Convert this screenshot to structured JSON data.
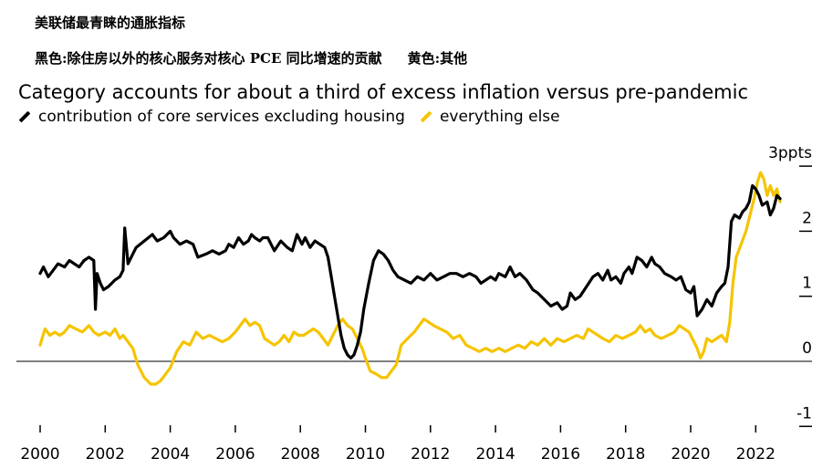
{
  "header": {
    "cn_title": "美联储最青睐的通胀指标",
    "cn_subtitle_black": "黑色:除住房以外的核心服务对核心 PCE 同比增速的贡献",
    "cn_subtitle_yellow": "黄色:其他"
  },
  "colors": {
    "black_series": "#000000",
    "yellow_series": "#f5c400",
    "zero_line": "#555555"
  },
  "chart_data": {
    "type": "line",
    "title": "Category accounts for about a third of excess inflation versus pre-pandemic",
    "ylabel": "ppts",
    "xlim": [
      2000,
      2023.4
    ],
    "ylim": [
      -1,
      3
    ],
    "y_ticks": [
      -1,
      0,
      1,
      2,
      3
    ],
    "y_tick_labels": [
      "-1",
      "0",
      "1",
      "2",
      "3ppts"
    ],
    "x_ticks": [
      2000,
      2002,
      2004,
      2006,
      2008,
      2010,
      2012,
      2014,
      2016,
      2018,
      2020,
      2022
    ],
    "x_tick_labels": [
      "2000",
      "2002",
      "2004",
      "2006",
      "2008",
      "2010",
      "2012",
      "2014",
      "2016",
      "2018",
      "2020",
      "2022"
    ],
    "series": [
      {
        "name": "contribution of core services excluding housing",
        "color": "#000000",
        "points": [
          [
            2000.0,
            1.35
          ],
          [
            2000.1,
            1.45
          ],
          [
            2000.25,
            1.3
          ],
          [
            2000.4,
            1.4
          ],
          [
            2000.55,
            1.5
          ],
          [
            2000.75,
            1.45
          ],
          [
            2000.9,
            1.55
          ],
          [
            2001.05,
            1.5
          ],
          [
            2001.2,
            1.45
          ],
          [
            2001.35,
            1.55
          ],
          [
            2001.5,
            1.6
          ],
          [
            2001.65,
            1.55
          ],
          [
            2001.7,
            0.8
          ],
          [
            2001.75,
            1.35
          ],
          [
            2001.85,
            1.2
          ],
          [
            2001.95,
            1.1
          ],
          [
            2002.1,
            1.15
          ],
          [
            2002.3,
            1.25
          ],
          [
            2002.45,
            1.3
          ],
          [
            2002.55,
            1.4
          ],
          [
            2002.6,
            2.05
          ],
          [
            2002.7,
            1.5
          ],
          [
            2002.8,
            1.6
          ],
          [
            2002.95,
            1.75
          ],
          [
            2003.2,
            1.85
          ],
          [
            2003.45,
            1.95
          ],
          [
            2003.6,
            1.85
          ],
          [
            2003.8,
            1.9
          ],
          [
            2004.0,
            2.0
          ],
          [
            2004.1,
            1.9
          ],
          [
            2004.3,
            1.8
          ],
          [
            2004.5,
            1.85
          ],
          [
            2004.7,
            1.8
          ],
          [
            2004.85,
            1.6
          ],
          [
            2005.1,
            1.65
          ],
          [
            2005.3,
            1.7
          ],
          [
            2005.5,
            1.65
          ],
          [
            2005.7,
            1.7
          ],
          [
            2005.8,
            1.8
          ],
          [
            2005.95,
            1.75
          ],
          [
            2006.1,
            1.9
          ],
          [
            2006.25,
            1.8
          ],
          [
            2006.4,
            1.85
          ],
          [
            2006.5,
            1.95
          ],
          [
            2006.6,
            1.9
          ],
          [
            2006.75,
            1.85
          ],
          [
            2006.85,
            1.9
          ],
          [
            2007.0,
            1.9
          ],
          [
            2007.2,
            1.7
          ],
          [
            2007.4,
            1.85
          ],
          [
            2007.6,
            1.75
          ],
          [
            2007.75,
            1.7
          ],
          [
            2007.9,
            1.95
          ],
          [
            2008.05,
            1.8
          ],
          [
            2008.15,
            1.9
          ],
          [
            2008.3,
            1.75
          ],
          [
            2008.45,
            1.85
          ],
          [
            2008.6,
            1.8
          ],
          [
            2008.75,
            1.75
          ],
          [
            2008.85,
            1.6
          ],
          [
            2008.95,
            1.3
          ],
          [
            2009.05,
            1.0
          ],
          [
            2009.15,
            0.7
          ],
          [
            2009.25,
            0.4
          ],
          [
            2009.35,
            0.2
          ],
          [
            2009.45,
            0.1
          ],
          [
            2009.55,
            0.05
          ],
          [
            2009.65,
            0.1
          ],
          [
            2009.75,
            0.25
          ],
          [
            2009.85,
            0.45
          ],
          [
            2009.95,
            0.8
          ],
          [
            2010.1,
            1.2
          ],
          [
            2010.25,
            1.55
          ],
          [
            2010.4,
            1.7
          ],
          [
            2010.55,
            1.65
          ],
          [
            2010.7,
            1.55
          ],
          [
            2010.85,
            1.4
          ],
          [
            2011.0,
            1.3
          ],
          [
            2011.2,
            1.25
          ],
          [
            2011.4,
            1.2
          ],
          [
            2011.6,
            1.3
          ],
          [
            2011.8,
            1.25
          ],
          [
            2012.0,
            1.35
          ],
          [
            2012.2,
            1.25
          ],
          [
            2012.4,
            1.3
          ],
          [
            2012.6,
            1.35
          ],
          [
            2012.8,
            1.35
          ],
          [
            2013.0,
            1.3
          ],
          [
            2013.2,
            1.35
          ],
          [
            2013.4,
            1.3
          ],
          [
            2013.55,
            1.2
          ],
          [
            2013.7,
            1.25
          ],
          [
            2013.85,
            1.3
          ],
          [
            2014.0,
            1.25
          ],
          [
            2014.1,
            1.35
          ],
          [
            2014.3,
            1.3
          ],
          [
            2014.45,
            1.45
          ],
          [
            2014.6,
            1.3
          ],
          [
            2014.75,
            1.35
          ],
          [
            2014.95,
            1.25
          ],
          [
            2015.15,
            1.1
          ],
          [
            2015.3,
            1.05
          ],
          [
            2015.5,
            0.95
          ],
          [
            2015.7,
            0.85
          ],
          [
            2015.9,
            0.9
          ],
          [
            2016.05,
            0.8
          ],
          [
            2016.2,
            0.85
          ],
          [
            2016.3,
            1.05
          ],
          [
            2016.45,
            0.95
          ],
          [
            2016.6,
            1.0
          ],
          [
            2016.8,
            1.15
          ],
          [
            2017.0,
            1.3
          ],
          [
            2017.15,
            1.35
          ],
          [
            2017.3,
            1.25
          ],
          [
            2017.45,
            1.4
          ],
          [
            2017.55,
            1.25
          ],
          [
            2017.7,
            1.3
          ],
          [
            2017.85,
            1.2
          ],
          [
            2017.95,
            1.35
          ],
          [
            2018.1,
            1.45
          ],
          [
            2018.2,
            1.35
          ],
          [
            2018.35,
            1.6
          ],
          [
            2018.5,
            1.55
          ],
          [
            2018.65,
            1.45
          ],
          [
            2018.8,
            1.6
          ],
          [
            2018.9,
            1.5
          ],
          [
            2019.05,
            1.45
          ],
          [
            2019.2,
            1.35
          ],
          [
            2019.4,
            1.3
          ],
          [
            2019.55,
            1.25
          ],
          [
            2019.7,
            1.3
          ],
          [
            2019.85,
            1.1
          ],
          [
            2020.0,
            1.05
          ],
          [
            2020.1,
            1.15
          ],
          [
            2020.2,
            0.7
          ],
          [
            2020.35,
            0.8
          ],
          [
            2020.5,
            0.95
          ],
          [
            2020.65,
            0.85
          ],
          [
            2020.8,
            1.05
          ],
          [
            2020.95,
            1.15
          ],
          [
            2021.05,
            1.2
          ],
          [
            2021.15,
            1.45
          ],
          [
            2021.25,
            2.15
          ],
          [
            2021.35,
            2.25
          ],
          [
            2021.5,
            2.2
          ],
          [
            2021.6,
            2.3
          ],
          [
            2021.7,
            2.35
          ],
          [
            2021.8,
            2.45
          ],
          [
            2021.9,
            2.7
          ],
          [
            2022.0,
            2.65
          ],
          [
            2022.1,
            2.55
          ],
          [
            2022.2,
            2.4
          ],
          [
            2022.35,
            2.45
          ],
          [
            2022.45,
            2.25
          ],
          [
            2022.55,
            2.35
          ],
          [
            2022.65,
            2.55
          ],
          [
            2022.75,
            2.5
          ]
        ]
      },
      {
        "name": "everything else",
        "color": "#f5c400",
        "points": [
          [
            2000.0,
            0.25
          ],
          [
            2000.15,
            0.5
          ],
          [
            2000.3,
            0.4
          ],
          [
            2000.45,
            0.45
          ],
          [
            2000.6,
            0.4
          ],
          [
            2000.75,
            0.45
          ],
          [
            2000.9,
            0.55
          ],
          [
            2001.1,
            0.5
          ],
          [
            2001.3,
            0.45
          ],
          [
            2001.5,
            0.55
          ],
          [
            2001.65,
            0.45
          ],
          [
            2001.8,
            0.4
          ],
          [
            2002.0,
            0.45
          ],
          [
            2002.15,
            0.4
          ],
          [
            2002.3,
            0.5
          ],
          [
            2002.45,
            0.35
          ],
          [
            2002.55,
            0.4
          ],
          [
            2002.7,
            0.3
          ],
          [
            2002.85,
            0.2
          ],
          [
            2003.0,
            -0.05
          ],
          [
            2003.2,
            -0.25
          ],
          [
            2003.4,
            -0.35
          ],
          [
            2003.55,
            -0.35
          ],
          [
            2003.7,
            -0.3
          ],
          [
            2003.85,
            -0.2
          ],
          [
            2004.0,
            -0.1
          ],
          [
            2004.2,
            0.15
          ],
          [
            2004.4,
            0.3
          ],
          [
            2004.6,
            0.25
          ],
          [
            2004.8,
            0.45
          ],
          [
            2005.0,
            0.35
          ],
          [
            2005.2,
            0.4
          ],
          [
            2005.4,
            0.35
          ],
          [
            2005.6,
            0.3
          ],
          [
            2005.8,
            0.35
          ],
          [
            2006.0,
            0.45
          ],
          [
            2006.15,
            0.55
          ],
          [
            2006.3,
            0.65
          ],
          [
            2006.45,
            0.55
          ],
          [
            2006.6,
            0.6
          ],
          [
            2006.75,
            0.55
          ],
          [
            2006.9,
            0.35
          ],
          [
            2007.05,
            0.3
          ],
          [
            2007.2,
            0.25
          ],
          [
            2007.35,
            0.3
          ],
          [
            2007.5,
            0.4
          ],
          [
            2007.65,
            0.3
          ],
          [
            2007.8,
            0.45
          ],
          [
            2007.95,
            0.4
          ],
          [
            2008.1,
            0.4
          ],
          [
            2008.25,
            0.45
          ],
          [
            2008.4,
            0.5
          ],
          [
            2008.55,
            0.45
          ],
          [
            2008.7,
            0.35
          ],
          [
            2008.85,
            0.25
          ],
          [
            2009.0,
            0.4
          ],
          [
            2009.15,
            0.55
          ],
          [
            2009.3,
            0.65
          ],
          [
            2009.45,
            0.55
          ],
          [
            2009.6,
            0.5
          ],
          [
            2009.75,
            0.35
          ],
          [
            2009.9,
            0.2
          ],
          [
            2010.0,
            0.05
          ],
          [
            2010.15,
            -0.15
          ],
          [
            2010.35,
            -0.2
          ],
          [
            2010.5,
            -0.25
          ],
          [
            2010.65,
            -0.25
          ],
          [
            2010.8,
            -0.15
          ],
          [
            2010.95,
            -0.05
          ],
          [
            2011.1,
            0.25
          ],
          [
            2011.3,
            0.35
          ],
          [
            2011.5,
            0.45
          ],
          [
            2011.65,
            0.55
          ],
          [
            2011.8,
            0.65
          ],
          [
            2011.95,
            0.6
          ],
          [
            2012.1,
            0.55
          ],
          [
            2012.3,
            0.5
          ],
          [
            2012.5,
            0.45
          ],
          [
            2012.7,
            0.35
          ],
          [
            2012.9,
            0.4
          ],
          [
            2013.1,
            0.25
          ],
          [
            2013.3,
            0.2
          ],
          [
            2013.5,
            0.15
          ],
          [
            2013.7,
            0.2
          ],
          [
            2013.9,
            0.15
          ],
          [
            2014.1,
            0.2
          ],
          [
            2014.3,
            0.15
          ],
          [
            2014.5,
            0.2
          ],
          [
            2014.7,
            0.25
          ],
          [
            2014.9,
            0.2
          ],
          [
            2015.1,
            0.3
          ],
          [
            2015.3,
            0.25
          ],
          [
            2015.5,
            0.35
          ],
          [
            2015.7,
            0.25
          ],
          [
            2015.9,
            0.35
          ],
          [
            2016.1,
            0.3
          ],
          [
            2016.3,
            0.35
          ],
          [
            2016.5,
            0.4
          ],
          [
            2016.7,
            0.35
          ],
          [
            2016.85,
            0.5
          ],
          [
            2017.0,
            0.45
          ],
          [
            2017.15,
            0.4
          ],
          [
            2017.3,
            0.35
          ],
          [
            2017.5,
            0.3
          ],
          [
            2017.7,
            0.4
          ],
          [
            2017.9,
            0.35
          ],
          [
            2018.1,
            0.4
          ],
          [
            2018.3,
            0.45
          ],
          [
            2018.45,
            0.55
          ],
          [
            2018.6,
            0.45
          ],
          [
            2018.75,
            0.5
          ],
          [
            2018.9,
            0.4
          ],
          [
            2019.1,
            0.35
          ],
          [
            2019.3,
            0.4
          ],
          [
            2019.5,
            0.45
          ],
          [
            2019.65,
            0.55
          ],
          [
            2019.8,
            0.5
          ],
          [
            2019.95,
            0.45
          ],
          [
            2020.05,
            0.35
          ],
          [
            2020.2,
            0.2
          ],
          [
            2020.3,
            0.05
          ],
          [
            2020.4,
            0.15
          ],
          [
            2020.5,
            0.35
          ],
          [
            2020.65,
            0.3
          ],
          [
            2020.8,
            0.35
          ],
          [
            2020.95,
            0.4
          ],
          [
            2021.1,
            0.3
          ],
          [
            2021.2,
            0.6
          ],
          [
            2021.3,
            1.2
          ],
          [
            2021.4,
            1.6
          ],
          [
            2021.55,
            1.8
          ],
          [
            2021.7,
            2.0
          ],
          [
            2021.85,
            2.3
          ],
          [
            2021.95,
            2.5
          ],
          [
            2022.05,
            2.75
          ],
          [
            2022.15,
            2.9
          ],
          [
            2022.25,
            2.8
          ],
          [
            2022.35,
            2.55
          ],
          [
            2022.45,
            2.7
          ],
          [
            2022.55,
            2.55
          ],
          [
            2022.65,
            2.65
          ],
          [
            2022.75,
            2.45
          ]
        ]
      }
    ]
  }
}
